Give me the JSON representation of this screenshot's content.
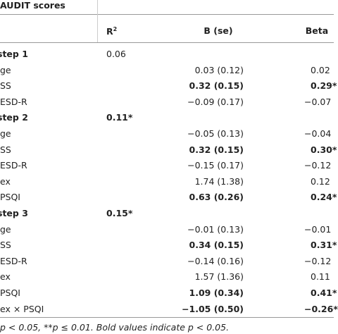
{
  "header": {
    "title": "AUDIT scores"
  },
  "table": {
    "columns": [
      {
        "text": "R",
        "sup": "2"
      },
      "B (se)",
      "Beta"
    ],
    "rows": [
      {
        "label": "step 1",
        "step": true,
        "r2": "0.06"
      },
      {
        "label": "ge",
        "b": "0.03 (0.12)",
        "beta": "0.02"
      },
      {
        "label": "SS",
        "b": "0.32 (0.15)",
        "beta": "0.29*",
        "bold": true
      },
      {
        "label": "ESD-R",
        "b": "−0.09 (0.17)",
        "beta": "−0.07"
      },
      {
        "label": "step 2",
        "step": true,
        "r2": "0.11*",
        "bold": true
      },
      {
        "label": "ge",
        "b": "−0.05 (0.13)",
        "beta": "−0.04"
      },
      {
        "label": "SS",
        "b": "0.32 (0.15)",
        "beta": "0.30*",
        "bold": true
      },
      {
        "label": "ESD-R",
        "b": "−0.15 (0.17)",
        "beta": "−0.12"
      },
      {
        "label": "ex",
        "b": "1.74 (1.38)",
        "beta": "0.12"
      },
      {
        "label": "PSQI",
        "b": "0.63 (0.26)",
        "beta": "0.24*",
        "bold": true
      },
      {
        "label": "step 3",
        "step": true,
        "r2": "0.15*",
        "bold": true
      },
      {
        "label": "ge",
        "b": "−0.01 (0.13)",
        "beta": "−0.01"
      },
      {
        "label": "SS",
        "b": "0.34 (0.15)",
        "beta": "0.31*",
        "bold": true
      },
      {
        "label": "ESD-R",
        "b": "−0.14 (0.16)",
        "beta": "−0.12"
      },
      {
        "label": "ex",
        "b": "1.57 (1.36)",
        "beta": "0.11"
      },
      {
        "label": "PSQI",
        "b": "1.09 (0.34)",
        "beta": "0.41*",
        "bold": true
      },
      {
        "label": "ex × PSQI",
        "b": "−1.05 (0.50)",
        "beta": "−0.26*",
        "bold": true
      }
    ]
  },
  "footer": {
    "note": "p < 0.05, **p ≤ 0.01. Bold values indicate p < 0.05."
  }
}
